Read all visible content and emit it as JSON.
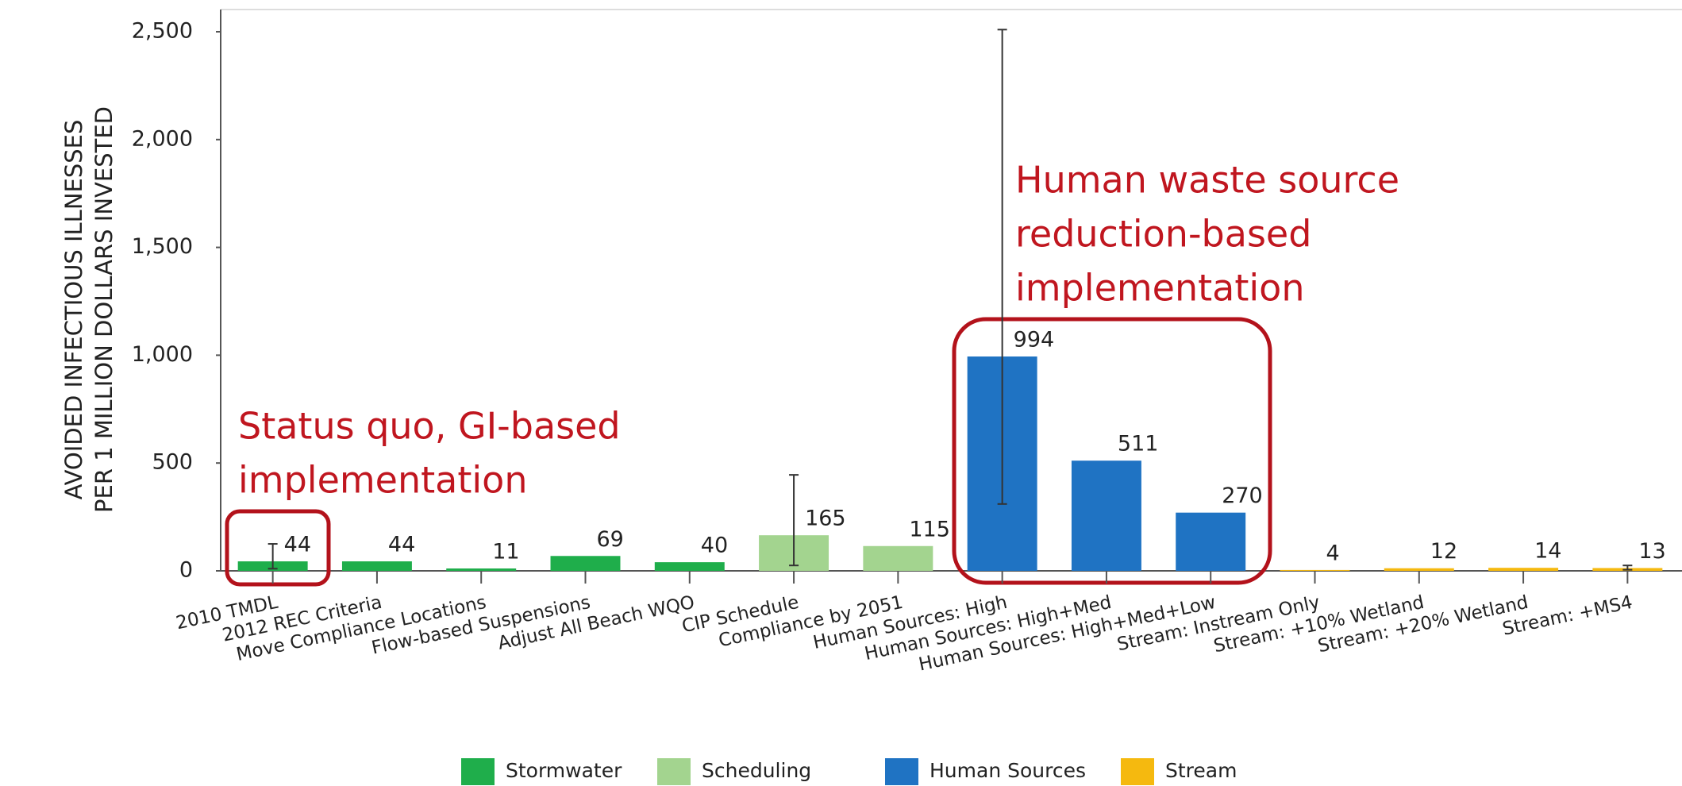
{
  "chart_data": {
    "type": "bar",
    "ylabel": [
      "AVOIDED INFECTIOUS ILLNESSES",
      "PER 1 MILLION DOLLARS INVESTED"
    ],
    "categories": [
      "2010 TMDL",
      "2012 REC Criteria",
      "Move Compliance Locations",
      "Flow-based Suspensions",
      "Adjust All Beach WQO",
      "CIP Schedule",
      "Compliance by 2051",
      "Human Sources: High",
      "Human Sources: High+Med",
      "Human Sources: High+Med+Low",
      "Stream: Instream Only",
      "Stream: +10% Wetland",
      "Stream: +20% Wetland",
      "Stream: +MS4"
    ],
    "series": [
      {
        "name": "Stormwater",
        "color": "#1fae4b",
        "values": [
          44,
          44,
          11,
          69,
          40,
          null,
          null,
          null,
          null,
          null,
          null,
          null,
          null,
          null
        ]
      },
      {
        "name": "Scheduling",
        "color": "#a3d48f",
        "values": [
          null,
          null,
          null,
          null,
          null,
          165,
          115,
          null,
          null,
          null,
          null,
          null,
          null,
          null
        ]
      },
      {
        "name": "Human Sources",
        "color": "#1f73c3",
        "values": [
          null,
          null,
          null,
          null,
          null,
          null,
          null,
          994,
          511,
          270,
          null,
          null,
          null,
          null
        ]
      },
      {
        "name": "Stream",
        "color": "#f5b90f",
        "values": [
          null,
          null,
          null,
          null,
          null,
          null,
          null,
          null,
          null,
          null,
          4,
          12,
          14,
          13
        ]
      }
    ],
    "error_low": [
      10,
      null,
      null,
      null,
      null,
      25,
      null,
      310,
      null,
      null,
      null,
      null,
      null,
      5
    ],
    "error_high": [
      125,
      null,
      null,
      null,
      null,
      445,
      null,
      2510,
      null,
      null,
      null,
      null,
      null,
      25
    ],
    "ylim": [
      0,
      2500
    ],
    "yticks": [
      0,
      {
        "value": 500,
        "label": "500"
      },
      {
        "value": 1000,
        "label": "1,000"
      },
      {
        "value": 1500,
        "label": "1,500"
      },
      {
        "value": 2000,
        "label": "2,000"
      },
      {
        "value": 2500,
        "label": "2,500"
      }
    ],
    "annotations": [
      {
        "lines": [
          "Status quo, GI-based",
          "implementation"
        ]
      },
      {
        "lines": [
          "Human waste source",
          "reduction-based",
          "implementation"
        ]
      }
    ]
  }
}
